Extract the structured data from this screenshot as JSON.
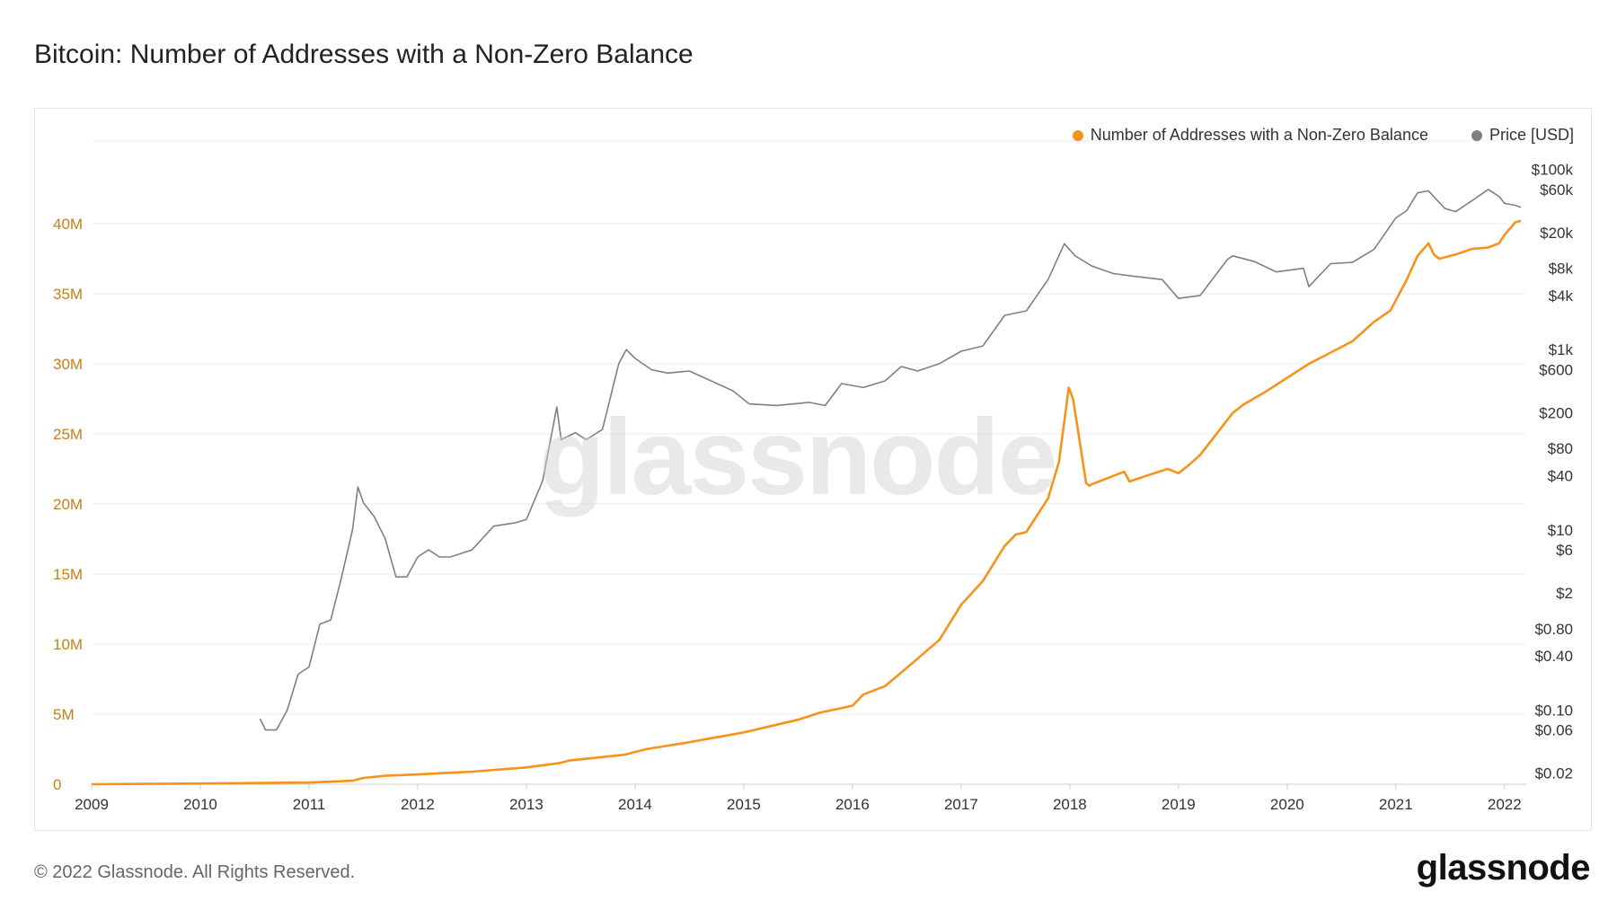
{
  "header": {
    "title": "Bitcoin: Number of Addresses with a Non-Zero Balance"
  },
  "footer": {
    "copyright": "© 2022 Glassnode. All Rights Reserved.",
    "brand": "glassnode"
  },
  "watermark": "glassnode",
  "colors": {
    "addresses": "#f7931a",
    "price": "#808080",
    "grid": "#eeeeee",
    "left_axis": "#c97d1a"
  },
  "chart_data": {
    "type": "line",
    "title": "Bitcoin: Number of Addresses with a Non-Zero Balance",
    "legend": {
      "placement": "top-right"
    },
    "x_ticks": [
      "2009",
      "2010",
      "2011",
      "2012",
      "2013",
      "2014",
      "2015",
      "2016",
      "2017",
      "2018",
      "2019",
      "2020",
      "2021",
      "2022"
    ],
    "x_range": [
      2009.0,
      2022.2
    ],
    "y_left": {
      "range": [
        0,
        45000000
      ],
      "ticks": [
        0,
        5000000,
        10000000,
        15000000,
        20000000,
        25000000,
        30000000,
        35000000,
        40000000
      ],
      "tick_labels": [
        "0",
        "5M",
        "10M",
        "15M",
        "20M",
        "25M",
        "30M",
        "35M",
        "40M"
      ]
    },
    "y_right": {
      "scale": "log",
      "range": [
        0.015,
        150000
      ],
      "ticks": [
        0.02,
        0.06,
        0.1,
        0.4,
        0.8,
        2,
        6,
        10,
        40,
        80,
        200,
        600,
        1000,
        4000,
        8000,
        20000,
        60000,
        100000
      ],
      "tick_labels": [
        "$0.02",
        "$0.06",
        "$0.10",
        "$0.40",
        "$0.80",
        "$2",
        "$6",
        "$10",
        "$40",
        "$80",
        "$200",
        "$600",
        "$1k",
        "$4k",
        "$8k",
        "$20k",
        "$60k",
        "$100k"
      ]
    },
    "series": [
      {
        "name": "Number of Addresses with a Non-Zero Balance",
        "axis": "left",
        "x": [
          2009.0,
          2010.0,
          2011.0,
          2011.4,
          2011.5,
          2011.7,
          2012.0,
          2012.5,
          2013.0,
          2013.3,
          2013.4,
          2013.9,
          2014.1,
          2014.5,
          2015.0,
          2015.5,
          2015.7,
          2016.0,
          2016.1,
          2016.3,
          2016.5,
          2016.8,
          2017.0,
          2017.2,
          2017.4,
          2017.5,
          2017.6,
          2017.7,
          2017.8,
          2017.9,
          2017.99,
          2018.03,
          2018.1,
          2018.15,
          2018.18,
          2018.2,
          2018.4,
          2018.5,
          2018.55,
          2018.7,
          2018.9,
          2019.0,
          2019.1,
          2019.2,
          2019.4,
          2019.5,
          2019.6,
          2019.8,
          2020.0,
          2020.2,
          2020.4,
          2020.6,
          2020.8,
          2020.95,
          2021.1,
          2021.2,
          2021.3,
          2021.35,
          2021.4,
          2021.55,
          2021.7,
          2021.85,
          2021.95,
          2022.0,
          2022.1,
          2022.15
        ],
        "y": [
          0,
          50000,
          120000,
          250000,
          450000,
          600000,
          700000,
          900000,
          1200000,
          1500000,
          1700000,
          2100000,
          2500000,
          3000000,
          3700000,
          4600000,
          5100000,
          5600000,
          6400000,
          7000000,
          8300000,
          10300000,
          12800000,
          14500000,
          17000000,
          17800000,
          18000000,
          19200000,
          20400000,
          23000000,
          28300000,
          27500000,
          24000000,
          21500000,
          21300000,
          21400000,
          22000000,
          22300000,
          21600000,
          22000000,
          22500000,
          22200000,
          22800000,
          23500000,
          25500000,
          26500000,
          27100000,
          28000000,
          29000000,
          30000000,
          30800000,
          31600000,
          33000000,
          33800000,
          36000000,
          37700000,
          38600000,
          37800000,
          37500000,
          37800000,
          38200000,
          38300000,
          38600000,
          39200000,
          40100000,
          40200000
        ]
      },
      {
        "name": "Price [USD]",
        "axis": "right",
        "x": [
          2010.55,
          2010.6,
          2010.65,
          2010.7,
          2010.8,
          2010.9,
          2011.0,
          2011.1,
          2011.2,
          2011.3,
          2011.4,
          2011.45,
          2011.5,
          2011.6,
          2011.7,
          2011.8,
          2011.9,
          2012.0,
          2012.1,
          2012.2,
          2012.3,
          2012.5,
          2012.7,
          2012.9,
          2013.0,
          2013.15,
          2013.28,
          2013.32,
          2013.45,
          2013.55,
          2013.7,
          2013.85,
          2013.92,
          2014.0,
          2014.15,
          2014.3,
          2014.5,
          2014.7,
          2014.9,
          2015.05,
          2015.3,
          2015.6,
          2015.75,
          2015.9,
          2016.1,
          2016.3,
          2016.45,
          2016.6,
          2016.8,
          2017.0,
          2017.2,
          2017.4,
          2017.6,
          2017.8,
          2017.95,
          2018.05,
          2018.2,
          2018.4,
          2018.6,
          2018.85,
          2019.0,
          2019.2,
          2019.45,
          2019.5,
          2019.7,
          2019.9,
          2020.15,
          2020.2,
          2020.4,
          2020.6,
          2020.8,
          2021.0,
          2021.1,
          2021.2,
          2021.3,
          2021.45,
          2021.55,
          2021.7,
          2021.85,
          2021.95,
          2022.0,
          2022.1,
          2022.15
        ],
        "y": [
          0.08,
          0.06,
          0.06,
          0.06,
          0.1,
          0.25,
          0.3,
          0.9,
          1,
          3,
          10,
          30,
          20,
          14,
          8,
          3,
          3,
          5,
          6,
          5,
          5,
          6,
          11,
          12,
          13,
          35,
          230,
          100,
          120,
          100,
          130,
          700,
          1000,
          800,
          600,
          550,
          580,
          450,
          350,
          250,
          240,
          260,
          240,
          420,
          380,
          450,
          650,
          580,
          700,
          960,
          1100,
          2400,
          2700,
          6000,
          15000,
          11000,
          8500,
          7000,
          6500,
          6000,
          3700,
          4000,
          10000,
          11000,
          9500,
          7300,
          8000,
          5000,
          9000,
          9300,
          13000,
          29000,
          35000,
          55000,
          58000,
          37000,
          34000,
          45000,
          60000,
          50000,
          42000,
          40000,
          38000
        ]
      }
    ]
  }
}
